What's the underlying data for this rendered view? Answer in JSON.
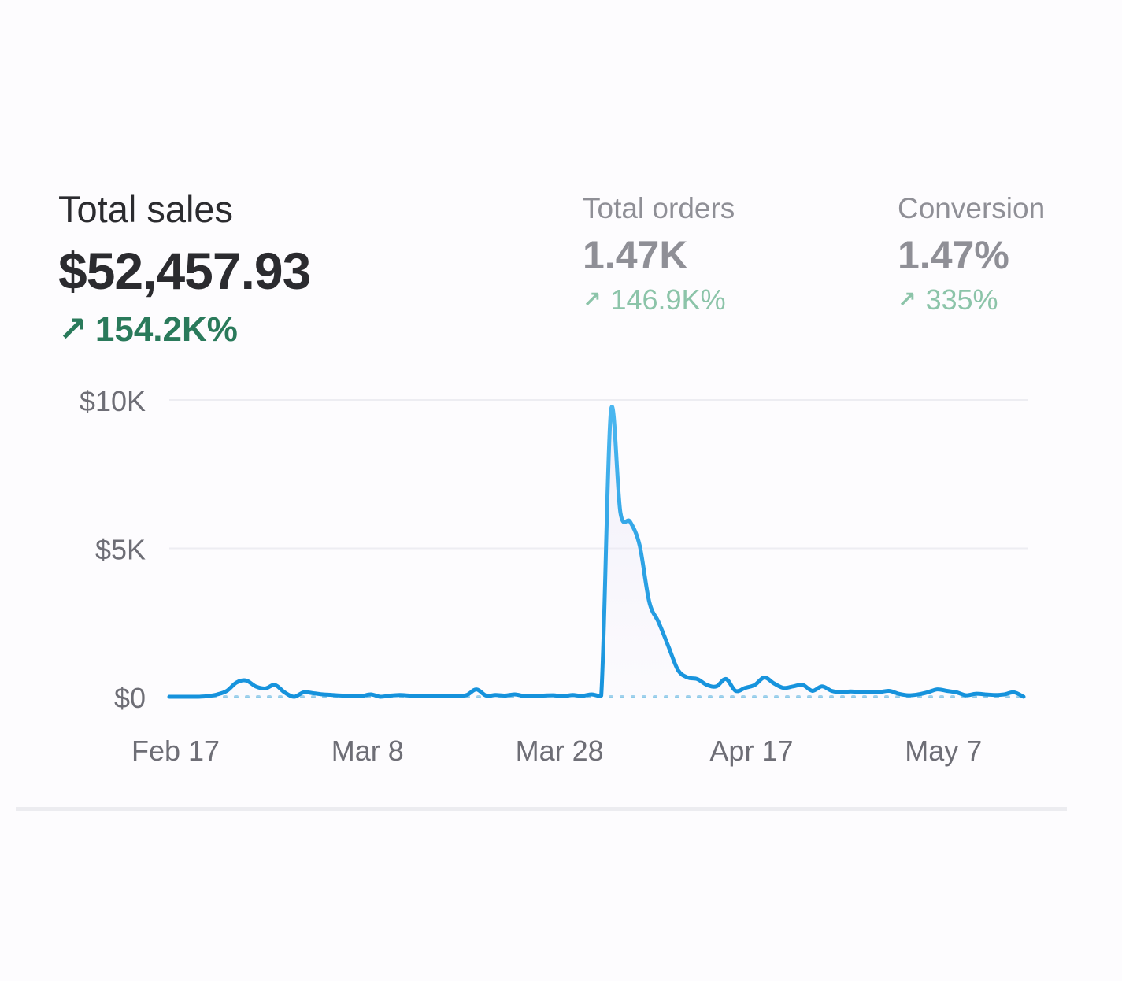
{
  "metrics": {
    "total_sales": {
      "label": "Total sales",
      "value": "$52,457.93",
      "delta": "154.2K%",
      "delta_icon": "arrow-up-right-icon"
    },
    "total_orders": {
      "label": "Total orders",
      "value": "1.47K",
      "delta": "146.9K%",
      "delta_icon": "arrow-up-right-icon"
    },
    "conversion": {
      "label": "Conversion",
      "value": "1.47%",
      "delta": "335%",
      "delta_icon": "arrow-up-right-icon"
    }
  },
  "colors": {
    "positive": "#2a7a5b",
    "positive_muted": "#8cc4a9",
    "line_top": "#4db8f0",
    "line_bottom": "#1592dc",
    "baseline": "#8dcae9",
    "grid": "#ededf2"
  },
  "chart_data": {
    "type": "line",
    "title": "",
    "xlabel": "",
    "ylabel": "",
    "ylim": [
      0,
      10000
    ],
    "y_ticks": [
      0,
      5000,
      10000
    ],
    "y_tick_labels": [
      "$0",
      "$5K",
      "$10K"
    ],
    "x_ticks": [
      0,
      20,
      40,
      60,
      80
    ],
    "x_tick_labels": [
      "Feb 17",
      "Mar 8",
      "Mar 28",
      "Apr 17",
      "May 7"
    ],
    "x_range": [
      0,
      89
    ],
    "grid": true,
    "baseline_dotted": true,
    "series": [
      {
        "values": [
          0,
          0,
          0,
          0,
          20,
          80,
          200,
          480,
          550,
          350,
          280,
          400,
          150,
          0,
          150,
          120,
          80,
          60,
          40,
          30,
          20,
          80,
          0,
          40,
          60,
          40,
          20,
          40,
          20,
          40,
          20,
          60,
          250,
          40,
          60,
          40,
          80,
          20,
          30,
          40,
          50,
          20,
          60,
          30,
          80,
          40,
          9600,
          6200,
          5900,
          5100,
          3200,
          2500,
          1700,
          900,
          650,
          600,
          400,
          350,
          600,
          200,
          300,
          400,
          650,
          450,
          300,
          350,
          400,
          200,
          350,
          200,
          150,
          180,
          150,
          170,
          160,
          200,
          100,
          50,
          80,
          150,
          250,
          200,
          150,
          50,
          100,
          80,
          60,
          80,
          150,
          0
        ]
      }
    ]
  }
}
